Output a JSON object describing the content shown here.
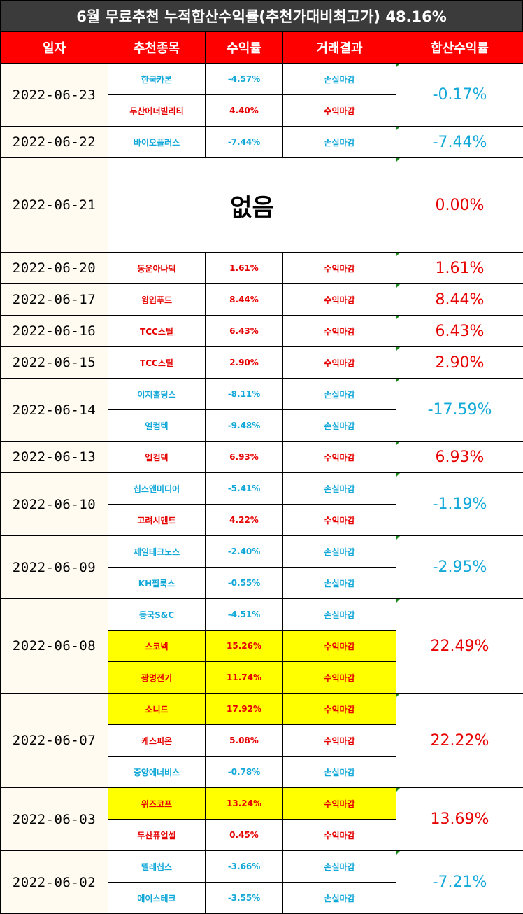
{
  "title": "6월 무료추천 누적합산수익률(추천가대비최고가) 48.16%",
  "headers": [
    "일자",
    "추천종목",
    "수익률",
    "거래결과",
    "합산수익률"
  ],
  "colors": {
    "header": "#ff0000",
    "title_bg": "#3b3b3b",
    "profit": "#e60000",
    "loss": "#12a8d8",
    "highlight": "#ffff00",
    "date_bg": "#fffbf1"
  },
  "groups": [
    {
      "date": "2022-06-23",
      "total": "-0.17%",
      "total_color": "blue",
      "rows": [
        {
          "name": "한국카본",
          "rate": "-4.57%",
          "result": "손실마감",
          "color": "blue",
          "hl": false
        },
        {
          "name": "두산에너빌리티",
          "rate": "4.40%",
          "result": "수익마감",
          "color": "red",
          "hl": false
        }
      ]
    },
    {
      "date": "2022-06-22",
      "total": "-7.44%",
      "total_color": "blue",
      "rows": [
        {
          "name": "바이오플러스",
          "rate": "-7.44%",
          "result": "손실마감",
          "color": "blue",
          "hl": false
        }
      ]
    },
    {
      "date": "2022-06-21",
      "total": "0.00%",
      "total_color": "red",
      "none": "없음",
      "rows": []
    },
    {
      "date": "2022-06-20",
      "total": "1.61%",
      "total_color": "red",
      "rows": [
        {
          "name": "동운아나텍",
          "rate": "1.61%",
          "result": "수익마감",
          "color": "red",
          "hl": false
        }
      ]
    },
    {
      "date": "2022-06-17",
      "total": "8.44%",
      "total_color": "red",
      "rows": [
        {
          "name": "윙입푸드",
          "rate": "8.44%",
          "result": "수익마감",
          "color": "red",
          "hl": false
        }
      ]
    },
    {
      "date": "2022-06-16",
      "total": "6.43%",
      "total_color": "red",
      "rows": [
        {
          "name": "TCC스틸",
          "rate": "6.43%",
          "result": "수익마감",
          "color": "red",
          "hl": false
        }
      ]
    },
    {
      "date": "2022-06-15",
      "total": "2.90%",
      "total_color": "red",
      "rows": [
        {
          "name": "TCC스틸",
          "rate": "2.90%",
          "result": "수익마감",
          "color": "red",
          "hl": false
        }
      ]
    },
    {
      "date": "2022-06-14",
      "total": "-17.59%",
      "total_color": "blue",
      "rows": [
        {
          "name": "이지홀딩스",
          "rate": "-8.11%",
          "result": "손실마감",
          "color": "blue",
          "hl": false
        },
        {
          "name": "엘컴텍",
          "rate": "-9.48%",
          "result": "손실마감",
          "color": "blue",
          "hl": false
        }
      ]
    },
    {
      "date": "2022-06-13",
      "total": "6.93%",
      "total_color": "red",
      "rows": [
        {
          "name": "엘컴텍",
          "rate": "6.93%",
          "result": "수익마감",
          "color": "red",
          "hl": false
        }
      ]
    },
    {
      "date": "2022-06-10",
      "total": "-1.19%",
      "total_color": "blue",
      "rows": [
        {
          "name": "칩스앤미디어",
          "rate": "-5.41%",
          "result": "손실마감",
          "color": "blue",
          "hl": false
        },
        {
          "name": "고려시멘트",
          "rate": "4.22%",
          "result": "수익마감",
          "color": "red",
          "hl": false
        }
      ]
    },
    {
      "date": "2022-06-09",
      "total": "-2.95%",
      "total_color": "blue",
      "rows": [
        {
          "name": "제일테크노스",
          "rate": "-2.40%",
          "result": "손실마감",
          "color": "blue",
          "hl": false
        },
        {
          "name": "KH필룩스",
          "rate": "-0.55%",
          "result": "손실마감",
          "color": "blue",
          "hl": false
        }
      ]
    },
    {
      "date": "2022-06-08",
      "total": "22.49%",
      "total_color": "red",
      "rows": [
        {
          "name": "동국S&C",
          "rate": "-4.51%",
          "result": "손실마감",
          "color": "blue",
          "hl": false
        },
        {
          "name": "스코넥",
          "rate": "15.26%",
          "result": "수익마감",
          "color": "red",
          "hl": true
        },
        {
          "name": "광명전기",
          "rate": "11.74%",
          "result": "수익마감",
          "color": "red",
          "hl": true
        }
      ]
    },
    {
      "date": "2022-06-07",
      "total": "22.22%",
      "total_color": "red",
      "rows": [
        {
          "name": "소니드",
          "rate": "17.92%",
          "result": "수익마감",
          "color": "red",
          "hl": true
        },
        {
          "name": "케스피온",
          "rate": "5.08%",
          "result": "수익마감",
          "color": "red",
          "hl": false
        },
        {
          "name": "중앙에너비스",
          "rate": "-0.78%",
          "result": "손실마감",
          "color": "blue",
          "hl": false
        }
      ]
    },
    {
      "date": "2022-06-03",
      "total": "13.69%",
      "total_color": "red",
      "rows": [
        {
          "name": "위즈코프",
          "rate": "13.24%",
          "result": "수익마감",
          "color": "red",
          "hl": true
        },
        {
          "name": "두산퓨얼셀",
          "rate": "0.45%",
          "result": "수익마감",
          "color": "red",
          "hl": false
        }
      ]
    },
    {
      "date": "2022-06-02",
      "total": "-7.21%",
      "total_color": "blue",
      "rows": [
        {
          "name": "텔레칩스",
          "rate": "-3.66%",
          "result": "손실마감",
          "color": "blue",
          "hl": false
        },
        {
          "name": "에이스테크",
          "rate": "-3.55%",
          "result": "손실마감",
          "color": "blue",
          "hl": false
        }
      ]
    }
  ]
}
